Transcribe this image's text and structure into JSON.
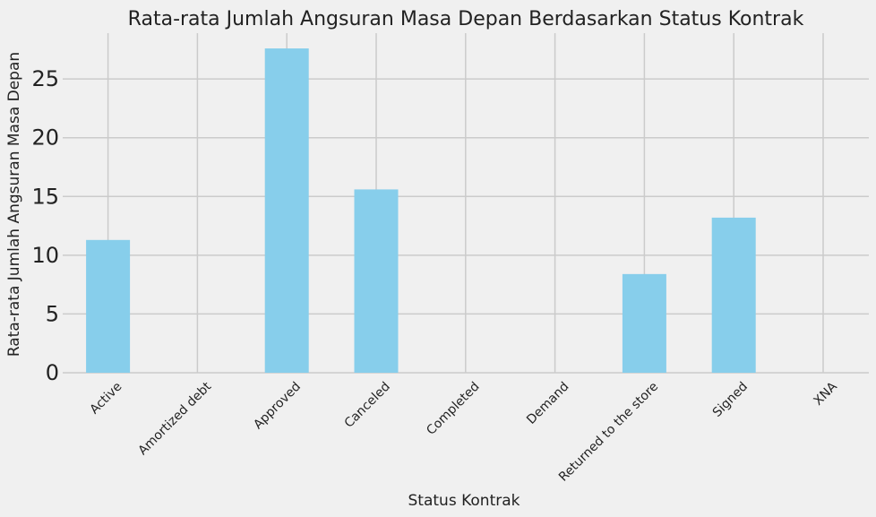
{
  "chart_data": {
    "type": "bar",
    "title": "Rata-rata Jumlah Angsuran Masa Depan Berdasarkan Status Kontrak",
    "xlabel": "Status Kontrak",
    "ylabel": "Rata-rata Jumlah Angsuran Masa Depan",
    "categories": [
      "Active",
      "Amortized debt",
      "Approved",
      "Canceled",
      "Completed",
      "Demand",
      "Returned to the store",
      "Signed",
      "XNA"
    ],
    "values": [
      11.3,
      0,
      27.6,
      15.6,
      0,
      0,
      8.4,
      13.2,
      0
    ],
    "ylim": [
      0,
      28.9
    ],
    "yticks": [
      0,
      5,
      10,
      15,
      20,
      25
    ],
    "grid": true,
    "bar_color": "#87ceeb",
    "background_color": "#f0f0f0",
    "grid_color": "#cbcbcb"
  }
}
